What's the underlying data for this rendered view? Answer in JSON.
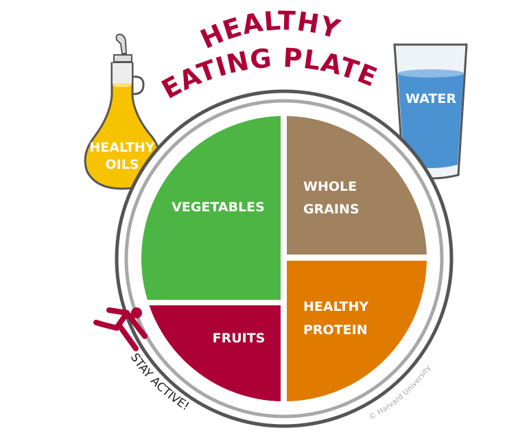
{
  "title": {
    "line1": "HEALTHY",
    "line2": "EATING PLATE"
  },
  "sections": {
    "vegetables": {
      "label": "VEGETABLES",
      "color": "#4cb543"
    },
    "whole_grains": {
      "line1": "WHOLE",
      "line2": "GRAINS",
      "color": "#a0825e"
    },
    "fruits": {
      "label": "FRUITS",
      "color": "#ad0037"
    },
    "healthy_protein": {
      "line1": "HEALTHY",
      "line2": "PROTEIN",
      "color": "#e07b00"
    }
  },
  "oil": {
    "line1": "HEALTHY",
    "line2": "OILS",
    "color": "#f7c200"
  },
  "water": {
    "label": "WATER",
    "color": "#4b92d3"
  },
  "stay_active": "STAY ACTIVE!",
  "copyright": "© Harvard University",
  "colors": {
    "title": "#ad0037",
    "plate_rim": "#555555",
    "plate_ring": "#a8a8a8"
  }
}
